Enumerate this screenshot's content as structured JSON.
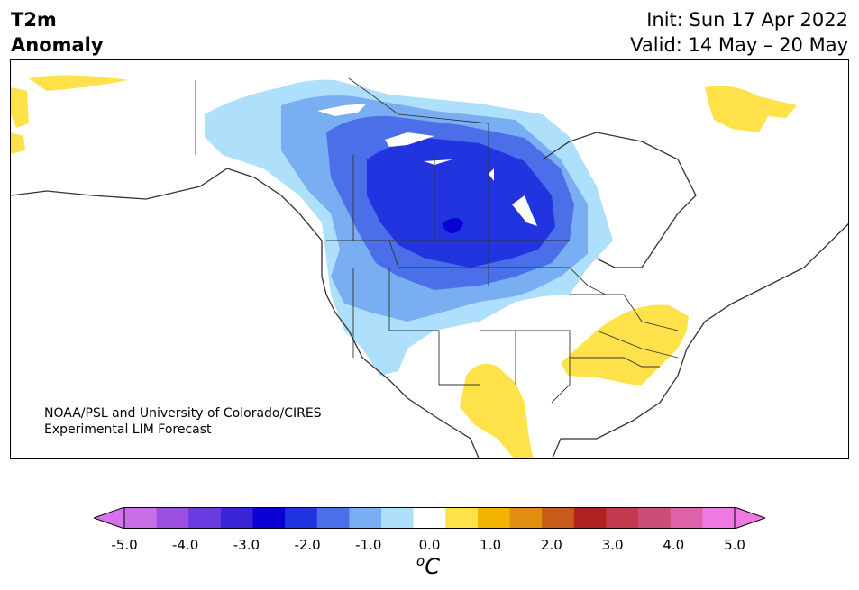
{
  "title": {
    "variable": "T2m",
    "kind": "Anomaly",
    "init": "Init: Sun 17 Apr 2022",
    "valid": "Valid: 14 May – 20 May"
  },
  "credit": {
    "line1": "NOAA/PSL and University of Colorado/CIRES",
    "line2": "Experimental LIM Forecast"
  },
  "colorbar": {
    "unit_base": "C",
    "unit_sup": "o",
    "tick_labels": [
      "-5.0",
      "-4.0",
      "-3.0",
      "-2.0",
      "-1.0",
      "0.0",
      "1.0",
      "2.0",
      "3.0",
      "4.0",
      "5.0"
    ],
    "colors": [
      "#c96fe6",
      "#9a4fe0",
      "#6a3be0",
      "#3a25d6",
      "#0a00d6",
      "#2233e0",
      "#4a6fe8",
      "#79aef2",
      "#aee0fb",
      "#ffffff",
      "#ffe24a",
      "#f2b400",
      "#e08d10",
      "#c85a1a",
      "#b22222",
      "#c43a4e",
      "#cc4e78",
      "#de62aa",
      "#ec7ae0"
    ],
    "extend_low_color": "#d672ee",
    "extend_high_color": "#ee7ae0"
  },
  "map": {
    "region": "North America",
    "anomaly_colors": {
      "cool_1": "#aee0fb",
      "cool_2": "#79aef2",
      "cool_3": "#4a6fe8",
      "cool_4": "#2233e0",
      "cool_5": "#0a00d6",
      "warm_1": "#ffe24a"
    }
  }
}
